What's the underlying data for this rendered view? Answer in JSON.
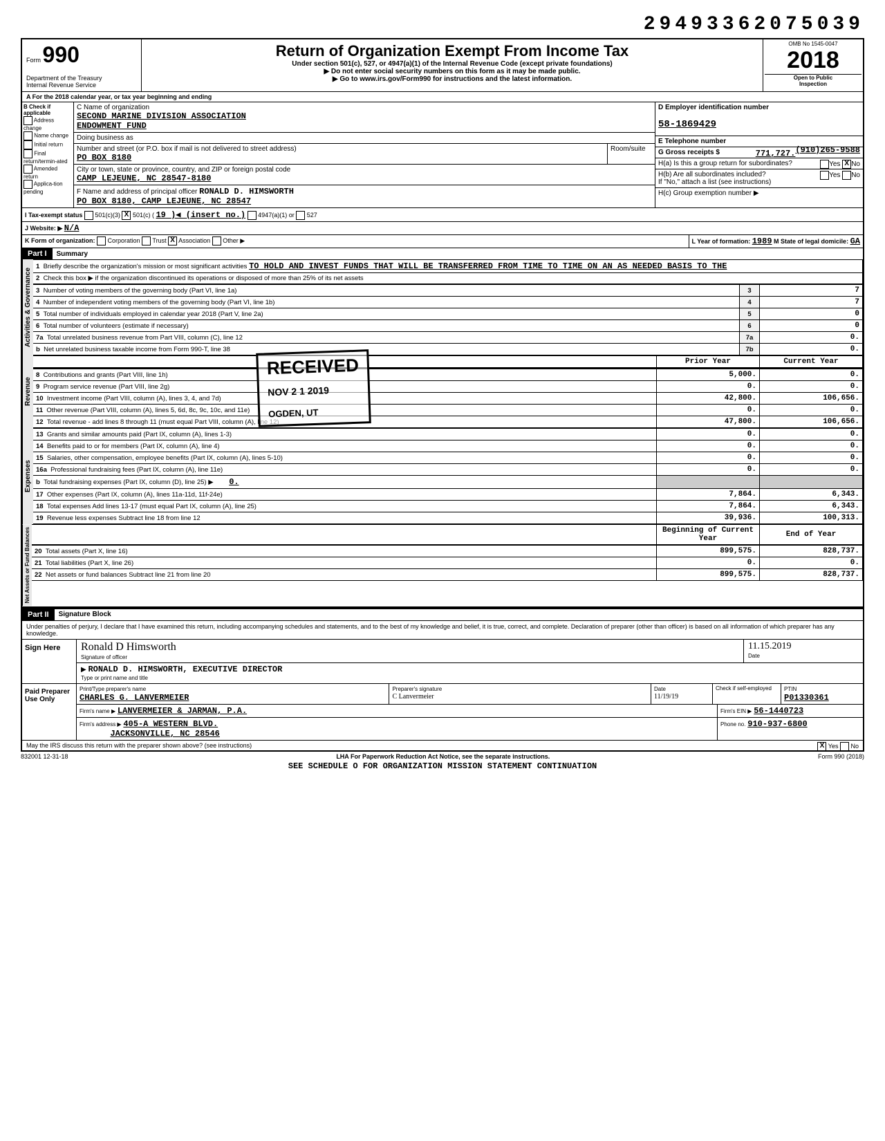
{
  "dln": "29493362075039",
  "form": {
    "number": "990",
    "prefix": "Form",
    "dept": "Department of the Treasury",
    "irs": "Internal Revenue Service",
    "title": "Return of Organization Exempt From Income Tax",
    "subtitle": "Under section 501(c), 527, or 4947(a)(1) of the Internal Revenue Code (except private foundations)",
    "note1": "Do not enter social security numbers on this form as it may be made public.",
    "note2": "Go to www.irs.gov/Form990 for instructions and the latest information.",
    "omb": "OMB No 1545-0047",
    "year": "2018",
    "open": "Open to Public",
    "inspection": "Inspection"
  },
  "lineA": "A  For the 2018 calendar year, or tax year beginning                                  and ending",
  "sectionB": {
    "label": "B  Check if applicable",
    "checks": [
      "Address change",
      "Name change",
      "Initial return",
      "Final return/termin-ated",
      "Amended return",
      "Applica-tion pending"
    ],
    "cName": "C Name of organization",
    "org1": "SECOND MARINE DIVISION ASSOCIATION",
    "org2": "ENDOWMENT FUND",
    "dba_label": "Doing business as",
    "addr_label": "Number and street (or P.O. box if mail is not delivered to street address)",
    "room_label": "Room/suite",
    "addr": "PO BOX 8180",
    "city_label": "City or town, state or province, country, and ZIP or foreign postal code",
    "city": "CAMP LEJEUNE, NC  28547-8180",
    "f_label": "F Name and address of principal officer",
    "officer": "RONALD D. HIMSWORTH",
    "officer_addr": "PO BOX 8180, CAMP LEJEUNE, NC  28547"
  },
  "sectionD": {
    "label": "D  Employer identification number",
    "ein": "58-1869429"
  },
  "sectionE": {
    "label": "E  Telephone number",
    "phone": "(910)265-9588"
  },
  "sectionG": {
    "label": "G  Gross receipts $",
    "amount": "771,727."
  },
  "sectionH": {
    "a": "H(a) Is this a group return for subordinates?",
    "b": "H(b) Are all subordinates included?",
    "b_note": "If \"No,\" attach a list (see instructions)",
    "c": "H(c) Group exemption number ▶",
    "yes": "Yes",
    "no": "No"
  },
  "lineI": {
    "label": "I  Tax-exempt status",
    "opts": [
      "501(c)(3)",
      "501(c) (",
      "4947(a)(1) or",
      "527"
    ],
    "insert": "19 )◀ (insert no.)",
    "checked_idx": 1
  },
  "lineJ": {
    "label": "J  Website: ▶",
    "val": "N/A"
  },
  "lineK": {
    "label": "K  Form of organization:",
    "opts": [
      "Corporation",
      "Trust",
      "Association",
      "Other ▶"
    ],
    "checked_idx": 2
  },
  "lineL": {
    "label": "L  Year of formation:",
    "year": "1989",
    "state_label": "M State of legal domicile:",
    "state": "GA"
  },
  "part1": {
    "num": "Part I",
    "title": "Summary"
  },
  "summary": {
    "line1_label": "Briefly describe the organization's mission or most significant activities",
    "line1_text": "TO HOLD AND INVEST FUNDS THAT WILL BE TRANSFERRED FROM TIME TO TIME ON AN AS NEEDED BASIS TO THE",
    "line2": "Check this box ▶        if the organization discontinued its operations or disposed of more than 25% of its net assets",
    "rows_ag": [
      {
        "n": "3",
        "label": "Number of voting members of the governing body (Part VI, line 1a)",
        "box": "3",
        "val": "7"
      },
      {
        "n": "4",
        "label": "Number of independent voting members of the governing body (Part VI, line 1b)",
        "box": "4",
        "val": "7"
      },
      {
        "n": "5",
        "label": "Total number of individuals employed in calendar year 2018 (Part V, line 2a)",
        "box": "5",
        "val": "0"
      },
      {
        "n": "6",
        "label": "Total number of volunteers (estimate if necessary)",
        "box": "6",
        "val": "0"
      },
      {
        "n": "7a",
        "label": "Total unrelated business revenue from Part VIII, column (C), line 12",
        "box": "7a",
        "val": "0."
      },
      {
        "n": "b",
        "label": "Net unrelated business taxable income from Form 990-T, line 38",
        "box": "7b",
        "val": "0."
      }
    ],
    "col_prior": "Prior Year",
    "col_current": "Current Year",
    "rev_rows": [
      {
        "n": "8",
        "label": "Contributions and grants (Part VIII, line 1h)",
        "prior": "5,000.",
        "curr": "0."
      },
      {
        "n": "9",
        "label": "Program service revenue (Part VIII, line 2g)",
        "prior": "0.",
        "curr": "0."
      },
      {
        "n": "10",
        "label": "Investment income (Part VIII, column (A), lines 3, 4, and 7d)",
        "prior": "42,800.",
        "curr": "106,656."
      },
      {
        "n": "11",
        "label": "Other revenue (Part VIII, column (A), lines 5, 6d, 8c, 9c, 10c, and 11e)",
        "prior": "0.",
        "curr": "0."
      },
      {
        "n": "12",
        "label": "Total revenue - add lines 8 through 11 (must equal Part VIII, column (A), line 12)",
        "prior": "47,800.",
        "curr": "106,656."
      }
    ],
    "exp_rows": [
      {
        "n": "13",
        "label": "Grants and similar amounts paid (Part IX, column (A), lines 1-3)",
        "prior": "0.",
        "curr": "0."
      },
      {
        "n": "14",
        "label": "Benefits paid to or for members (Part IX, column (A), line 4)",
        "prior": "0.",
        "curr": "0."
      },
      {
        "n": "15",
        "label": "Salaries, other compensation, employee benefits (Part IX, column (A), lines 5-10)",
        "prior": "0.",
        "curr": "0."
      },
      {
        "n": "16a",
        "label": "Professional fundraising fees (Part IX, column (A), line 11e)",
        "prior": "0.",
        "curr": "0."
      },
      {
        "n": "b",
        "label": "Total fundraising expenses (Part IX, column (D), line 25)    ▶",
        "prior": "",
        "curr": "",
        "inline": "0."
      },
      {
        "n": "17",
        "label": "Other expenses (Part IX, column (A), lines 11a-11d, 11f-24e)",
        "prior": "7,864.",
        "curr": "6,343."
      },
      {
        "n": "18",
        "label": "Total expenses Add lines 13-17 (must equal Part IX, column (A), line 25)",
        "prior": "7,864.",
        "curr": "6,343."
      },
      {
        "n": "19",
        "label": "Revenue less expenses Subtract line 18 from line 12",
        "prior": "39,936.",
        "curr": "100,313."
      }
    ],
    "col_beg": "Beginning of Current Year",
    "col_end": "End of Year",
    "na_rows": [
      {
        "n": "20",
        "label": "Total assets (Part X, line 16)",
        "prior": "899,575.",
        "curr": "828,737."
      },
      {
        "n": "21",
        "label": "Total liabilities (Part X, line 26)",
        "prior": "0.",
        "curr": "0."
      },
      {
        "n": "22",
        "label": "Net assets or fund balances Subtract line 21 from line 20",
        "prior": "899,575.",
        "curr": "828,737."
      }
    ],
    "side_ag": "Activities & Governance",
    "side_rev": "Revenue",
    "side_exp": "Expenses",
    "side_na": "Net Assets or Fund Balances",
    "stamp1": "RECEIVED",
    "stamp2": "NOV 2 1 2019",
    "stamp3": "OGDEN, UT"
  },
  "part2": {
    "num": "Part II",
    "title": "Signature Block"
  },
  "sig": {
    "perjury": "Under penalties of perjury, I declare that I have examined this return, including accompanying schedules and statements, and to the best of my knowledge and belief, it is true, correct, and complete. Declaration of preparer (other than officer) is based on all information of which preparer has any knowledge.",
    "sign_here": "Sign Here",
    "sig_label": "Signature of officer",
    "date_label": "Date",
    "date": "11.15.2019",
    "name": "RONALD D. HIMSWORTH, EXECUTIVE DIRECTOR",
    "name_label": "Type or print name and title",
    "paid": "Paid Preparer Use Only",
    "prep_name_label": "Print/Type preparer's name",
    "prep_name": "CHARLES G. LANVERMEIER",
    "prep_sig_label": "Preparer's signature",
    "prep_date_label": "Date",
    "prep_date": "11/19/19",
    "check_label": "Check      if self-employed",
    "ptin_label": "PTIN",
    "ptin": "P01330361",
    "firm_name_label": "Firm's name ▶",
    "firm_name": "LANVERMEIER & JARMAN, P.A.",
    "firm_ein_label": "Firm's EIN ▶",
    "firm_ein": "56-1440723",
    "firm_addr_label": "Firm's address ▶",
    "firm_addr1": "405-A WESTERN BLVD.",
    "firm_addr2": "JACKSONVILLE, NC 28546",
    "firm_phone_label": "Phone no.",
    "firm_phone": "910-937-6800",
    "discuss": "May the IRS discuss this return with the preparer shown above? (see instructions)",
    "yes": "Yes",
    "no": "No"
  },
  "footer": {
    "left": "832001  12-31-18",
    "lha": "LHA  For Paperwork Reduction Act Notice, see the separate instructions.",
    "right": "Form 990 (2018)",
    "bottom": "SEE SCHEDULE O FOR ORGANIZATION MISSION STATEMENT CONTINUATION"
  }
}
